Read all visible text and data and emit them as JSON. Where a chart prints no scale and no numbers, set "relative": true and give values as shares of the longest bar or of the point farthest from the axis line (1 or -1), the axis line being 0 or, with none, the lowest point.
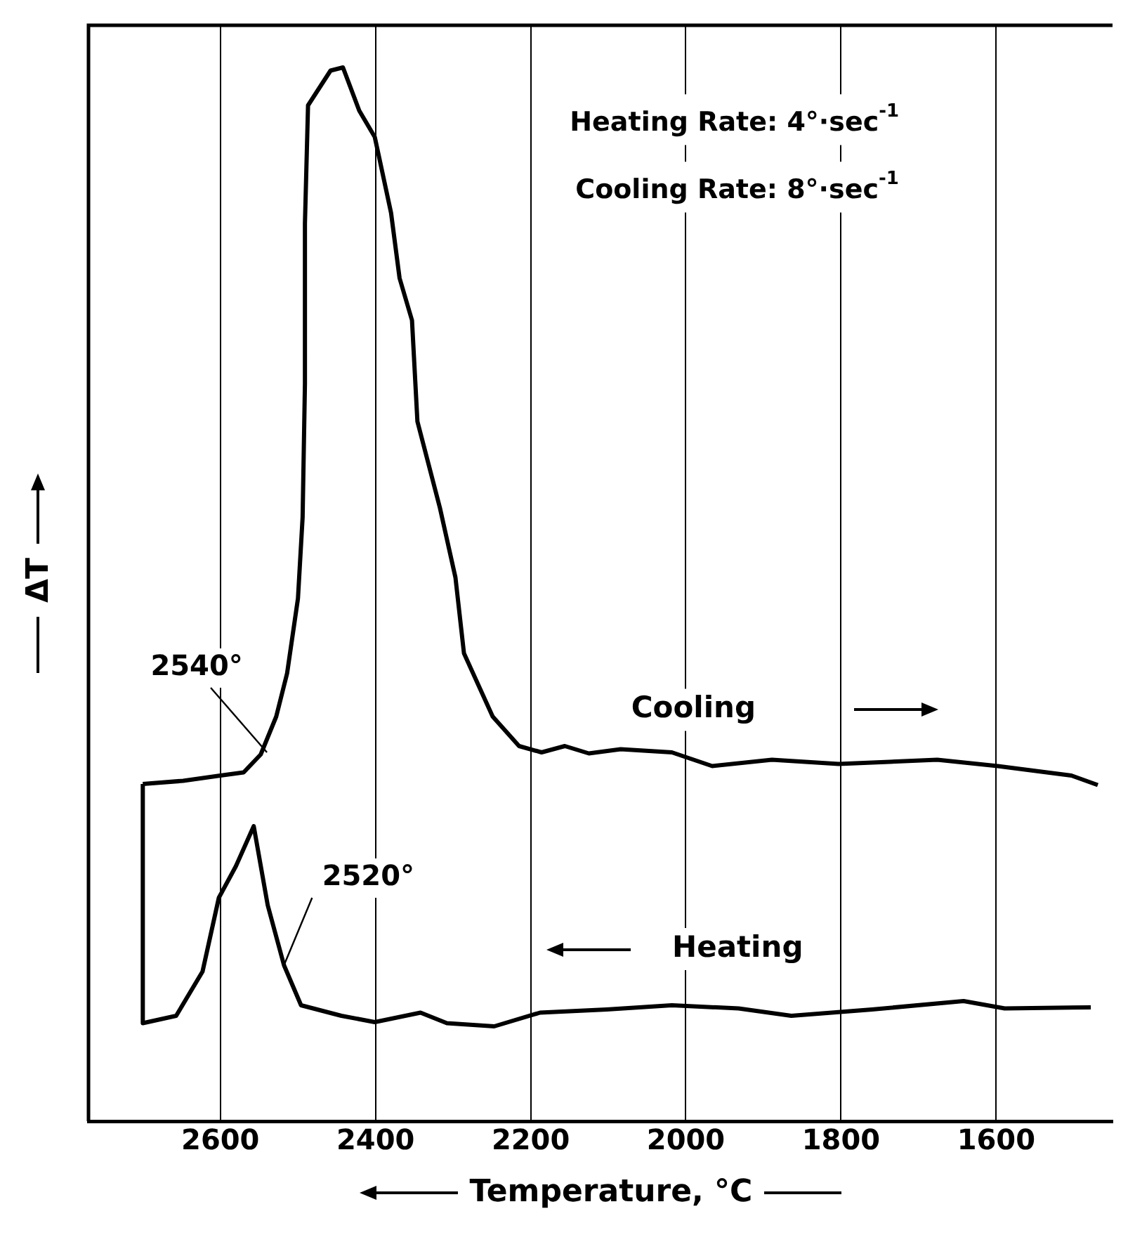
{
  "chart_data": {
    "type": "line",
    "relative": true,
    "xlabel": "Temperature, °C",
    "ylabel": "ΔT",
    "xlim": [
      2770,
      1450
    ],
    "xticks": [
      2600,
      2400,
      2200,
      2000,
      1800,
      1600
    ],
    "grid": "x",
    "marker": "none",
    "line_style": "solid",
    "annotations": [
      "Heating Rate: 4°·sec$^{-1}$",
      "Cooling Rate: 8°·sec$^{-1}$",
      {
        "text": "2540°",
        "x": 2540,
        "y": 0.35
      },
      {
        "text": "2520°",
        "x": 2518,
        "y": 0.148
      }
    ],
    "series": [
      {
        "name": "Cooling",
        "color": "#000000",
        "x": [
          2700,
          2648,
          2600,
          2570,
          2548,
          2528,
          2514,
          2500,
          2494,
          2491,
          2491,
          2487,
          2458,
          2442,
          2421,
          2401,
          2380,
          2369,
          2353,
          2346,
          2317,
          2297,
          2286,
          2249,
          2215,
          2186,
          2156,
          2125,
          2084,
          2018,
          1966,
          1889,
          1803,
          1676,
          1598,
          1503,
          1469
        ],
        "values": [
          0.32,
          0.323,
          0.328,
          0.331,
          0.348,
          0.384,
          0.425,
          0.496,
          0.573,
          0.7,
          0.852,
          0.964,
          0.997,
          1,
          0.959,
          0.934,
          0.862,
          0.8,
          0.76,
          0.664,
          0.582,
          0.516,
          0.444,
          0.384,
          0.356,
          0.35,
          0.356,
          0.349,
          0.353,
          0.35,
          0.337,
          0.343,
          0.339,
          0.343,
          0.337,
          0.328,
          0.319
        ]
      },
      {
        "name": "Heating",
        "color": "#000000",
        "x": [
          1478,
          1589,
          1642,
          1760,
          1864,
          1932,
          2018,
          2102,
          2188,
          2247,
          2308,
          2342,
          2401,
          2444,
          2496,
          2518,
          2539,
          2557,
          2580,
          2602,
          2623,
          2657,
          2700,
          2700
        ],
        "values": [
          0.108,
          0.107,
          0.114,
          0.106,
          0.1,
          0.107,
          0.11,
          0.106,
          0.103,
          0.09,
          0.093,
          0.103,
          0.094,
          0.1,
          0.11,
          0.148,
          0.205,
          0.28,
          0.242,
          0.212,
          0.142,
          0.1,
          0.093,
          0.32
        ]
      }
    ]
  }
}
